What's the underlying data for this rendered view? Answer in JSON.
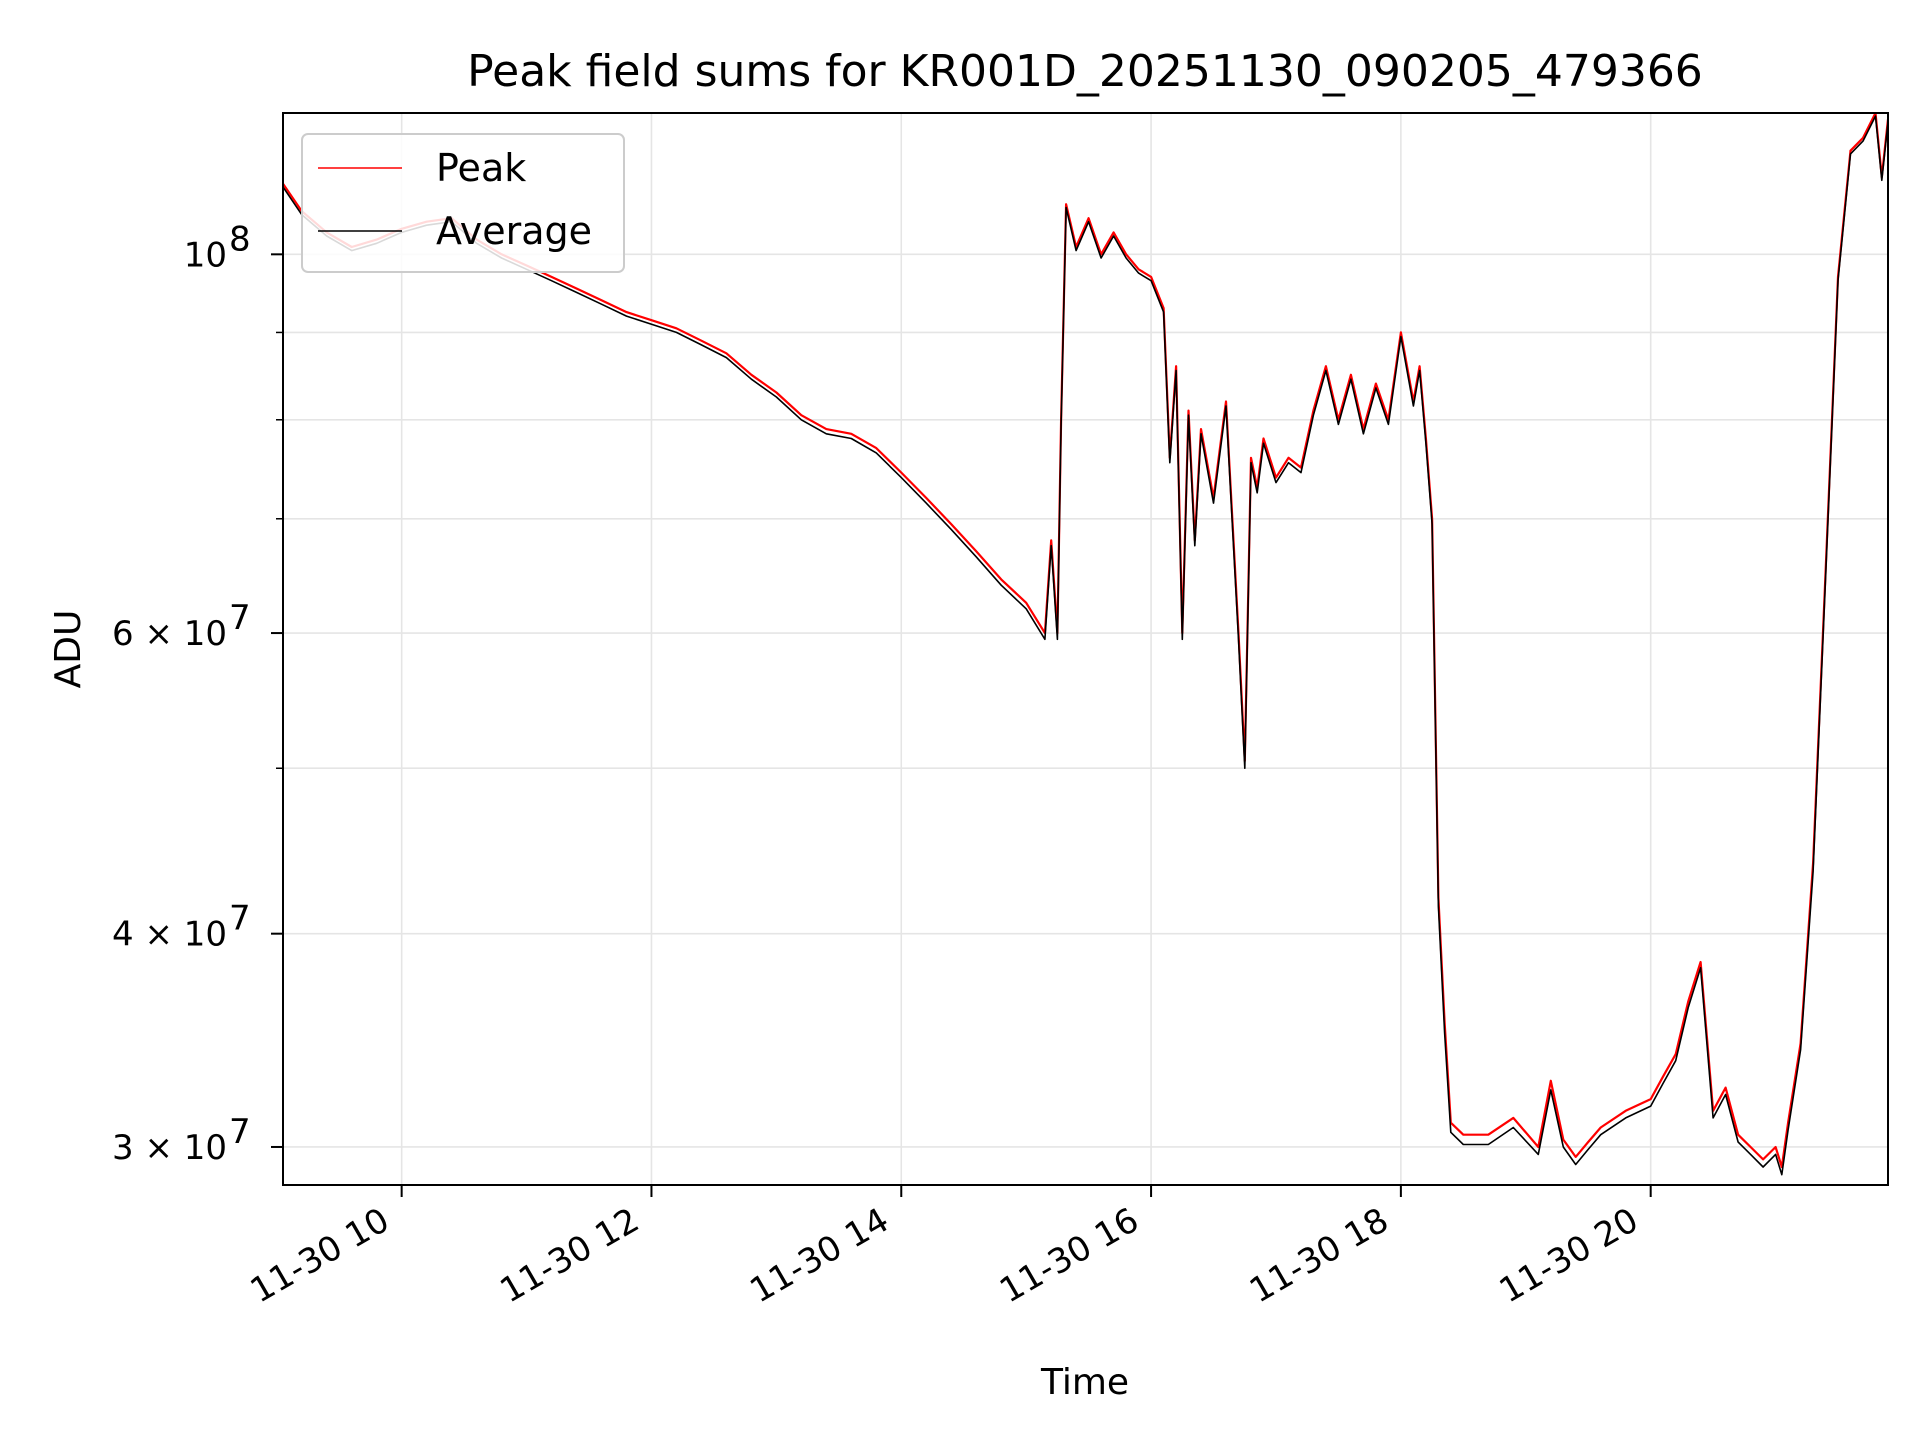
{
  "chart_data": {
    "type": "line",
    "title": "Peak field sums for KR001D_20251130_090205_479366",
    "xlabel": "Time",
    "ylabel": "ADU",
    "yscale": "log",
    "ylim": [
      28500000,
      121000000
    ],
    "xlim_hours": [
      9.05,
      21.9
    ],
    "x_ticks": [
      {
        "value": 10,
        "label": "11-30 10"
      },
      {
        "value": 12,
        "label": "11-30 12"
      },
      {
        "value": 14,
        "label": "11-30 14"
      },
      {
        "value": 16,
        "label": "11-30 16"
      },
      {
        "value": 18,
        "label": "11-30 18"
      },
      {
        "value": 20,
        "label": "11-30 20"
      }
    ],
    "y_major_ticks": [
      {
        "value": 100000000,
        "base": "10",
        "exp": "8"
      },
      {
        "value": 60000000,
        "base": "6 × 10",
        "exp": "7"
      },
      {
        "value": 40000000,
        "base": "4 × 10",
        "exp": "7"
      },
      {
        "value": 30000000,
        "base": "3 × 10",
        "exp": "7"
      }
    ],
    "y_minor_ticks": [
      50000000,
      70000000,
      80000000,
      90000000
    ],
    "grid": true,
    "legend_position": "upper-left",
    "colors": {
      "peak": "#ff0000",
      "average": "#000000",
      "grid": "#e5e5e5"
    },
    "series": [
      {
        "name": "Peak",
        "color": "#ff0000",
        "x": [
          9.05,
          9.2,
          9.4,
          9.6,
          9.8,
          10.0,
          10.2,
          10.4,
          10.6,
          10.8,
          11.0,
          11.2,
          11.4,
          11.6,
          11.8,
          12.0,
          12.2,
          12.4,
          12.6,
          12.8,
          13.0,
          13.2,
          13.4,
          13.6,
          13.8,
          14.0,
          14.2,
          14.4,
          14.6,
          14.8,
          15.0,
          15.15,
          15.2,
          15.25,
          15.28,
          15.32,
          15.4,
          15.5,
          15.6,
          15.7,
          15.8,
          15.9,
          16.0,
          16.1,
          16.15,
          16.2,
          16.25,
          16.3,
          16.35,
          16.4,
          16.5,
          16.6,
          16.7,
          16.75,
          16.8,
          16.85,
          16.9,
          17.0,
          17.1,
          17.2,
          17.3,
          17.4,
          17.5,
          17.6,
          17.7,
          17.8,
          17.9,
          18.0,
          18.1,
          18.15,
          18.2,
          18.25,
          18.3,
          18.35,
          18.4,
          18.5,
          18.7,
          18.9,
          19.1,
          19.2,
          19.3,
          19.4,
          19.5,
          19.6,
          19.8,
          20.0,
          20.1,
          20.2,
          20.3,
          20.4,
          20.5,
          20.6,
          20.7,
          20.8,
          20.9,
          21.0,
          21.05,
          21.1,
          21.2,
          21.3,
          21.4,
          21.5,
          21.6,
          21.7,
          21.8,
          21.85,
          21.9
        ],
        "values": [
          110000000,
          106000000,
          103000000,
          101000000,
          102000000,
          103500000,
          104500000,
          105000000,
          102000000,
          100000000,
          98500000,
          97000000,
          95500000,
          94000000,
          92500000,
          91500000,
          90500000,
          89000000,
          87500000,
          85000000,
          83000000,
          80500000,
          79000000,
          78500000,
          77000000,
          74500000,
          72000000,
          69500000,
          67000000,
          64500000,
          62500000,
          60000000,
          68000000,
          60000000,
          80000000,
          107000000,
          101000000,
          105000000,
          100000000,
          103000000,
          100000000,
          98000000,
          97000000,
          93000000,
          76000000,
          86000000,
          60000000,
          81000000,
          68000000,
          79000000,
          72000000,
          82000000,
          60000000,
          50500000,
          76000000,
          73000000,
          78000000,
          74000000,
          76000000,
          75000000,
          81000000,
          86000000,
          80000000,
          85000000,
          79000000,
          84000000,
          80000000,
          90000000,
          82000000,
          86000000,
          78000000,
          70000000,
          42000000,
          35500000,
          31000000,
          30500000,
          30500000,
          31200000,
          30000000,
          32800000,
          30300000,
          29600000,
          30200000,
          30800000,
          31500000,
          32000000,
          33000000,
          34000000,
          36500000,
          38500000,
          31500000,
          32500000,
          30500000,
          30000000,
          29500000,
          30000000,
          29200000,
          31000000,
          34500000,
          44000000,
          65000000,
          97000000,
          115000000,
          117000000,
          121000000,
          111000000,
          120000000
        ]
      },
      {
        "name": "Average",
        "color": "#000000",
        "x": [
          9.05,
          9.2,
          9.4,
          9.6,
          9.8,
          10.0,
          10.2,
          10.4,
          10.6,
          10.8,
          11.0,
          11.2,
          11.4,
          11.6,
          11.8,
          12.0,
          12.2,
          12.4,
          12.6,
          12.8,
          13.0,
          13.2,
          13.4,
          13.6,
          13.8,
          14.0,
          14.2,
          14.4,
          14.6,
          14.8,
          15.0,
          15.15,
          15.2,
          15.25,
          15.28,
          15.32,
          15.4,
          15.5,
          15.6,
          15.7,
          15.8,
          15.9,
          16.0,
          16.1,
          16.15,
          16.2,
          16.25,
          16.3,
          16.35,
          16.4,
          16.5,
          16.6,
          16.7,
          16.75,
          16.8,
          16.85,
          16.9,
          17.0,
          17.1,
          17.2,
          17.3,
          17.4,
          17.5,
          17.6,
          17.7,
          17.8,
          17.9,
          18.0,
          18.1,
          18.15,
          18.2,
          18.25,
          18.3,
          18.35,
          18.4,
          18.5,
          18.7,
          18.9,
          19.1,
          19.2,
          19.3,
          19.4,
          19.5,
          19.6,
          19.8,
          20.0,
          20.1,
          20.2,
          20.3,
          20.4,
          20.5,
          20.6,
          20.7,
          20.8,
          20.9,
          21.0,
          21.05,
          21.1,
          21.2,
          21.3,
          21.4,
          21.5,
          21.6,
          21.7,
          21.8,
          21.85,
          21.9
        ],
        "values": [
          109500000,
          105500000,
          102500000,
          100500000,
          101500000,
          103000000,
          104000000,
          104500000,
          101500000,
          99500000,
          98000000,
          96500000,
          95000000,
          93500000,
          92000000,
          91000000,
          90000000,
          88500000,
          87000000,
          84500000,
          82500000,
          80000000,
          78500000,
          78000000,
          76500000,
          74000000,
          71500000,
          69000000,
          66500000,
          64000000,
          62000000,
          59500000,
          67500000,
          59500000,
          79500000,
          106500000,
          100500000,
          104500000,
          99500000,
          102500000,
          99500000,
          97500000,
          96500000,
          92500000,
          75500000,
          85500000,
          59500000,
          80500000,
          67500000,
          78500000,
          71500000,
          81500000,
          59500000,
          50000000,
          75500000,
          72500000,
          77500000,
          73500000,
          75500000,
          74500000,
          80500000,
          85500000,
          79500000,
          84500000,
          78500000,
          83500000,
          79500000,
          89500000,
          81500000,
          85500000,
          77500000,
          69500000,
          41500000,
          35000000,
          30600000,
          30100000,
          30100000,
          30800000,
          29700000,
          32400000,
          30000000,
          29300000,
          29900000,
          30500000,
          31200000,
          31700000,
          32700000,
          33700000,
          36200000,
          38200000,
          31200000,
          32200000,
          30200000,
          29700000,
          29200000,
          29700000,
          28900000,
          30700000,
          34200000,
          43500000,
          64500000,
          96500000,
          114500000,
          116500000,
          120500000,
          110500000,
          119500000
        ]
      }
    ]
  }
}
